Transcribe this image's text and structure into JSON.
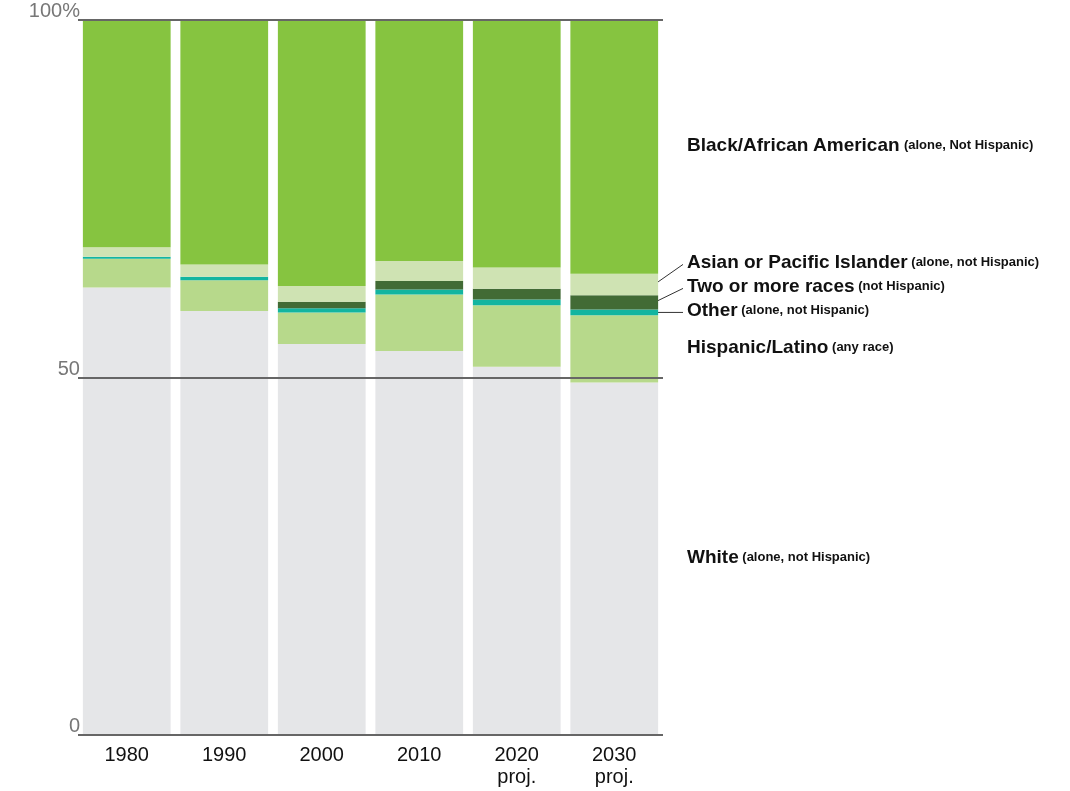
{
  "chart_data": {
    "type": "bar",
    "stacked": true,
    "categories": [
      "1980",
      "1990",
      "2000",
      "2010",
      "2020\nproj.",
      "2030\nproj."
    ],
    "series": [
      {
        "name": "White (alone, not Hispanic)",
        "color": "#e5e6e8",
        "values": [
          62.6,
          59.3,
          54.7,
          53.7,
          51.5,
          49.3
        ]
      },
      {
        "name": "Hispanic/Latino (any race)",
        "color": "#b7d98b",
        "values": [
          4.0,
          4.3,
          4.4,
          7.9,
          8.6,
          9.4
        ]
      },
      {
        "name": "Other (alone, not Hispanic)",
        "color": "#13b5a0",
        "values": [
          0.3,
          0.5,
          0.6,
          0.7,
          0.8,
          0.8
        ]
      },
      {
        "name": "Two or more races (not Hispanic)",
        "color": "#426b35",
        "values": [
          0,
          0,
          0.9,
          1.2,
          1.5,
          2.0
        ]
      },
      {
        "name": "Asian or Pacific Islander (alone, not Hispanic)",
        "color": "#cfe3b3",
        "values": [
          1.3,
          1.7,
          2.2,
          2.8,
          3.0,
          3.0
        ]
      },
      {
        "name": "Black/African American (alone, Not Hispanic)",
        "color": "#86c440",
        "values": [
          31.8,
          34.2,
          37.2,
          33.7,
          34.6,
          35.5
        ]
      }
    ],
    "ylim": [
      0,
      100
    ],
    "yticks": [
      0,
      50,
      {
        "value": 100,
        "label": "100%"
      }
    ],
    "grid": "y",
    "legend": false
  }
}
